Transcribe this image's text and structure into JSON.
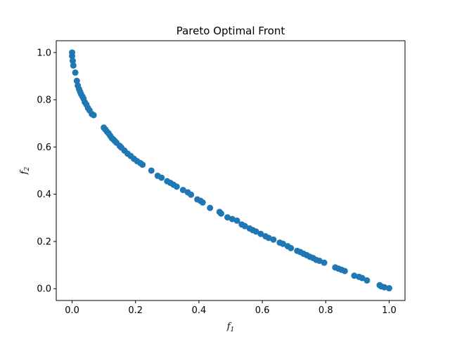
{
  "chart_data": {
    "type": "scatter",
    "title": "Pareto Optimal Front",
    "xlabel": "f",
    "xlabel_sub": "1",
    "ylabel": "f",
    "ylabel_sub": "2",
    "xlim": [
      -0.05,
      1.05
    ],
    "ylim": [
      -0.05,
      1.05
    ],
    "xticks": [
      0.0,
      0.2,
      0.4,
      0.6,
      0.8,
      1.0
    ],
    "yticks": [
      0.0,
      0.2,
      0.4,
      0.6,
      0.8,
      1.0
    ],
    "xtick_labels": [
      "0.0",
      "0.2",
      "0.4",
      "0.6",
      "0.8",
      "1.0"
    ],
    "ytick_labels": [
      "0.0",
      "0.2",
      "0.4",
      "0.6",
      "0.8",
      "1.0"
    ],
    "grid": false,
    "marker_color": "#1f77b4",
    "series": [
      {
        "x": [
          0.0,
          0.0,
          0.002,
          0.004,
          0.01,
          0.015,
          0.018,
          0.022,
          0.025,
          0.028,
          0.032,
          0.036,
          0.04,
          0.045,
          0.05,
          0.055,
          0.062,
          0.068,
          0.1,
          0.105,
          0.11,
          0.115,
          0.12,
          0.125,
          0.13,
          0.135,
          0.14,
          0.15,
          0.155,
          0.165,
          0.175,
          0.185,
          0.195,
          0.205,
          0.215,
          0.222,
          0.25,
          0.27,
          0.282,
          0.3,
          0.31,
          0.32,
          0.33,
          0.35,
          0.365,
          0.375,
          0.395,
          0.405,
          0.412,
          0.435,
          0.465,
          0.47,
          0.49,
          0.505,
          0.52,
          0.535,
          0.545,
          0.56,
          0.57,
          0.58,
          0.595,
          0.61,
          0.62,
          0.635,
          0.655,
          0.665,
          0.68,
          0.69,
          0.71,
          0.72,
          0.73,
          0.74,
          0.75,
          0.76,
          0.77,
          0.78,
          0.795,
          0.83,
          0.84,
          0.85,
          0.86,
          0.89,
          0.905,
          0.915,
          0.93,
          0.97,
          0.975,
          0.985,
          1.0
        ],
        "y": [
          1.0,
          0.985,
          0.965,
          0.945,
          0.915,
          0.88,
          0.86,
          0.845,
          0.835,
          0.825,
          0.815,
          0.805,
          0.79,
          0.78,
          0.765,
          0.755,
          0.74,
          0.735,
          0.682,
          0.674,
          0.665,
          0.658,
          0.648,
          0.638,
          0.632,
          0.625,
          0.618,
          0.605,
          0.598,
          0.585,
          0.572,
          0.562,
          0.55,
          0.54,
          0.532,
          0.525,
          0.5,
          0.478,
          0.47,
          0.455,
          0.448,
          0.44,
          0.432,
          0.418,
          0.408,
          0.398,
          0.378,
          0.372,
          0.365,
          0.342,
          0.325,
          0.318,
          0.302,
          0.295,
          0.288,
          0.272,
          0.265,
          0.255,
          0.248,
          0.242,
          0.232,
          0.222,
          0.215,
          0.208,
          0.195,
          0.19,
          0.18,
          0.172,
          0.16,
          0.155,
          0.148,
          0.142,
          0.135,
          0.13,
          0.122,
          0.118,
          0.11,
          0.09,
          0.085,
          0.08,
          0.075,
          0.055,
          0.05,
          0.045,
          0.035,
          0.015,
          0.01,
          0.006,
          0.002
        ]
      }
    ]
  }
}
